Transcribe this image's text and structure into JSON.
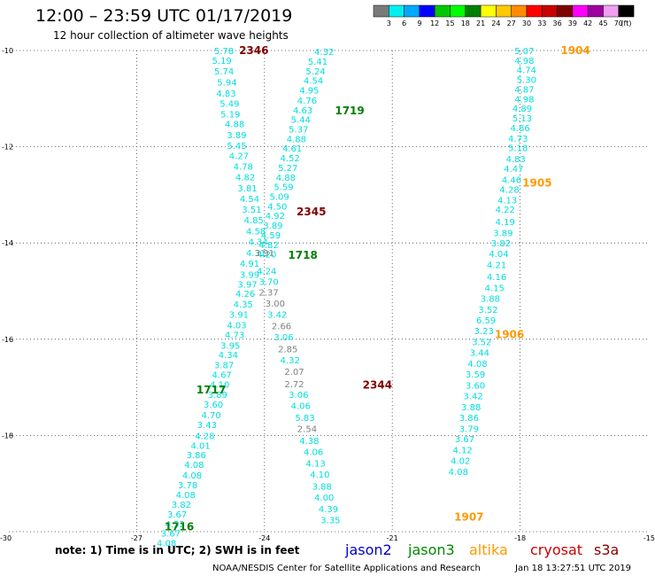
{
  "header": {
    "title": "12:00 – 23:59 UTC 01/17/2019",
    "subtitle": "12 hour collection of altimeter wave heights"
  },
  "colorbar": {
    "colors": [
      "#7a7a7a",
      "#00f0f0",
      "#00a8ff",
      "#0000ff",
      "#00c800",
      "#00ff00",
      "#008000",
      "#ffff00",
      "#ffc800",
      "#ff8c00",
      "#ff0000",
      "#c80000",
      "#800000",
      "#ff00ff",
      "#a000a0",
      "#f0a0f0",
      "#000000"
    ],
    "labels": [
      "3",
      "6",
      "9",
      "12",
      "15",
      "18",
      "21",
      "24",
      "27",
      "30",
      "33",
      "36",
      "39",
      "42",
      "45",
      "70",
      "(ft)"
    ]
  },
  "note": "note:  1) Time is in UTC; 2) SWH is in feet",
  "legend": [
    {
      "label": "jason2",
      "color": "#0000cc"
    },
    {
      "label": "jason3",
      "color": "#008800"
    },
    {
      "label": "altika",
      "color": "#ff9900"
    },
    {
      "label": "cryosat",
      "color": "#cc0000"
    },
    {
      "label": "s3a",
      "color": "#880000"
    }
  ],
  "footer": {
    "center": "NOAA/NESDIS Center for Satellite Applications and Research",
    "timestamp": "Jan 18 13:27:51 UTC 2019"
  },
  "chart_data": {
    "type": "scatter",
    "title": "12:00 – 23:59 UTC 01/17/2019",
    "subtitle": "12 hour collection of altimeter wave heights",
    "xlim": [
      -30,
      -15
    ],
    "ylim": [
      -20,
      -10
    ],
    "x_ticks": [
      "-30",
      "-27",
      "-24",
      "-21",
      "-18",
      "-15"
    ],
    "y_ticks": [
      "-10",
      "-12",
      "-14",
      "-16",
      "-18",
      "-20"
    ],
    "grid": true,
    "colors": {
      "cyan": "#00dede",
      "gray": "#808080",
      "green": "#008000",
      "darkred": "#800000",
      "orange": "#ff9900"
    },
    "time_labels": [
      {
        "text": "2346",
        "x": -24.25,
        "y": -10.0,
        "color": "darkred"
      },
      {
        "text": "1719",
        "x": -22.0,
        "y": -11.25,
        "color": "green"
      },
      {
        "text": "2345",
        "x": -22.9,
        "y": -13.35,
        "color": "darkred"
      },
      {
        "text": "1718",
        "x": -23.1,
        "y": -14.25,
        "color": "green"
      },
      {
        "text": "2344",
        "x": -21.35,
        "y": -16.95,
        "color": "darkred"
      },
      {
        "text": "1717",
        "x": -25.25,
        "y": -17.05,
        "color": "green"
      },
      {
        "text": "1716",
        "x": -26.0,
        "y": -19.9,
        "color": "green"
      },
      {
        "text": "1904",
        "x": -16.7,
        "y": -10.0,
        "color": "orange"
      },
      {
        "text": "1905",
        "x": -17.6,
        "y": -12.75,
        "color": "orange"
      },
      {
        "text": "1906",
        "x": -18.25,
        "y": -15.9,
        "color": "orange"
      },
      {
        "text": "1907",
        "x": -19.2,
        "y": -19.7,
        "color": "orange"
      }
    ],
    "series": [
      {
        "track": "descending-west",
        "color": "cyan",
        "values": [
          {
            "x": -24.95,
            "y": -10.0,
            "swh": "5.78"
          },
          {
            "x": -25.0,
            "y": -10.2,
            "swh": "5.19"
          },
          {
            "x": -24.95,
            "y": -10.42,
            "swh": "5.74"
          },
          {
            "x": -24.88,
            "y": -10.65,
            "swh": "5.94"
          },
          {
            "x": -24.9,
            "y": -10.88,
            "swh": "4.83"
          },
          {
            "x": -24.82,
            "y": -11.1,
            "swh": "5.49"
          },
          {
            "x": -24.8,
            "y": -11.32,
            "swh": "5.19"
          },
          {
            "x": -24.7,
            "y": -11.52,
            "swh": "4.88"
          },
          {
            "x": -24.65,
            "y": -11.75,
            "swh": "3.89"
          },
          {
            "x": -24.65,
            "y": -11.97,
            "swh": "5.45"
          },
          {
            "x": -24.6,
            "y": -12.18,
            "swh": "4.27"
          },
          {
            "x": -24.5,
            "y": -12.4,
            "swh": "4.78"
          },
          {
            "x": -24.45,
            "y": -12.62,
            "swh": "4.82"
          },
          {
            "x": -24.4,
            "y": -12.85,
            "swh": "3.81"
          },
          {
            "x": -24.35,
            "y": -13.08,
            "swh": "4.54"
          },
          {
            "x": -24.3,
            "y": -13.3,
            "swh": "3.51"
          },
          {
            "x": -24.25,
            "y": -13.52,
            "swh": "4.85"
          },
          {
            "x": -24.2,
            "y": -13.75,
            "swh": "4.58"
          },
          {
            "x": -24.15,
            "y": -13.97,
            "swh": "4.34"
          },
          {
            "x": -24.2,
            "y": -14.2,
            "swh": "4.31"
          },
          {
            "x": -24.35,
            "y": -14.42,
            "swh": "4.91"
          },
          {
            "x": -24.35,
            "y": -14.65,
            "swh": "3.99"
          },
          {
            "x": -24.4,
            "y": -14.85,
            "swh": "3.97"
          },
          {
            "x": -24.45,
            "y": -15.05,
            "swh": "4.26"
          },
          {
            "x": -24.5,
            "y": -15.27,
            "swh": "4.35"
          },
          {
            "x": -24.6,
            "y": -15.48,
            "swh": "3.91"
          },
          {
            "x": -24.65,
            "y": -15.7,
            "swh": "4.03"
          },
          {
            "x": -24.7,
            "y": -15.9,
            "swh": "4.73"
          },
          {
            "x": -24.8,
            "y": -16.12,
            "swh": "3.95"
          },
          {
            "x": -24.85,
            "y": -16.32,
            "swh": "4.34"
          },
          {
            "x": -24.95,
            "y": -16.53,
            "swh": "3.87"
          },
          {
            "x": -25.0,
            "y": -16.73,
            "swh": "4.67"
          },
          {
            "x": -25.05,
            "y": -16.93,
            "swh": "4.10"
          },
          {
            "x": -25.1,
            "y": -17.15,
            "swh": "3.89"
          },
          {
            "x": -25.2,
            "y": -17.35,
            "swh": "3.60"
          },
          {
            "x": -25.25,
            "y": -17.57,
            "swh": "4.70"
          },
          {
            "x": -25.35,
            "y": -17.77,
            "swh": "3.43"
          },
          {
            "x": -25.4,
            "y": -18.0,
            "swh": "4.28"
          },
          {
            "x": -25.5,
            "y": -18.2,
            "swh": "4.01"
          },
          {
            "x": -25.6,
            "y": -18.4,
            "swh": "3.86"
          },
          {
            "x": -25.65,
            "y": -18.6,
            "swh": "4.08"
          },
          {
            "x": -25.7,
            "y": -18.82,
            "swh": "4.08"
          },
          {
            "x": -25.8,
            "y": -19.02,
            "swh": "3.78"
          },
          {
            "x": -25.85,
            "y": -19.23,
            "swh": "4.08"
          },
          {
            "x": -25.95,
            "y": -19.43,
            "swh": "3.82"
          },
          {
            "x": -26.05,
            "y": -19.63,
            "swh": "3.67"
          },
          {
            "x": -26.1,
            "y": -19.83,
            "swh": "4.52"
          },
          {
            "x": -26.2,
            "y": -20.03,
            "swh": "3.67"
          },
          {
            "x": -26.3,
            "y": -20.23,
            "swh": "4.08"
          }
        ]
      },
      {
        "track": "ascending-middle",
        "color": "cyan",
        "values": [
          {
            "x": -22.6,
            "y": -10.02,
            "swh": "4.32"
          },
          {
            "x": -22.75,
            "y": -10.22,
            "swh": "5.41"
          },
          {
            "x": -22.8,
            "y": -10.42,
            "swh": "5.24"
          },
          {
            "x": -22.85,
            "y": -10.62,
            "swh": "4.54"
          },
          {
            "x": -22.95,
            "y": -10.82,
            "swh": "4.95"
          },
          {
            "x": -23.0,
            "y": -11.03,
            "swh": "4.76"
          },
          {
            "x": -23.1,
            "y": -11.23,
            "swh": "4.63"
          },
          {
            "x": -23.15,
            "y": -11.43,
            "swh": "5.44"
          },
          {
            "x": -23.2,
            "y": -11.63,
            "swh": "5.37"
          },
          {
            "x": -23.25,
            "y": -11.83,
            "swh": "4.88"
          },
          {
            "x": -23.35,
            "y": -12.03,
            "swh": "4.61"
          },
          {
            "x": -23.4,
            "y": -12.23,
            "swh": "4.52"
          },
          {
            "x": -23.45,
            "y": -12.43,
            "swh": "5.27"
          },
          {
            "x": -23.5,
            "y": -12.63,
            "swh": "4.88"
          },
          {
            "x": -23.55,
            "y": -12.83,
            "swh": "5.59"
          },
          {
            "x": -23.65,
            "y": -13.03,
            "swh": "5.09"
          },
          {
            "x": -23.7,
            "y": -13.23,
            "swh": "4.50"
          },
          {
            "x": -23.75,
            "y": -13.43,
            "swh": "4.92"
          },
          {
            "x": -23.8,
            "y": -13.63,
            "swh": "3.89"
          },
          {
            "x": -23.85,
            "y": -13.83,
            "swh": "4.59"
          },
          {
            "x": -23.9,
            "y": -14.03,
            "swh": "4.82"
          },
          {
            "x": -23.95,
            "y": -14.23,
            "swh": "4.20"
          }
        ]
      },
      {
        "track": "descending-middle",
        "color": "gray",
        "values": [
          {
            "x": -24.0,
            "y": -14.2,
            "swh": "3.91",
            "color": "gray"
          },
          {
            "x": -23.95,
            "y": -14.58,
            "swh": "4.24",
            "color": "cyan"
          },
          {
            "x": -23.9,
            "y": -14.8,
            "swh": "3.70",
            "color": "cyan"
          },
          {
            "x": -23.9,
            "y": -15.02,
            "swh": "2.37",
            "color": "gray"
          },
          {
            "x": -23.75,
            "y": -15.25,
            "swh": "3.00",
            "color": "gray"
          },
          {
            "x": -23.7,
            "y": -15.48,
            "swh": "3.42",
            "color": "cyan"
          },
          {
            "x": -23.6,
            "y": -15.72,
            "swh": "2.66",
            "color": "gray"
          },
          {
            "x": -23.55,
            "y": -15.95,
            "swh": "3.06",
            "color": "cyan"
          },
          {
            "x": -23.45,
            "y": -16.2,
            "swh": "2.85",
            "color": "gray"
          },
          {
            "x": -23.4,
            "y": -16.43,
            "swh": "4.32",
            "color": "cyan"
          },
          {
            "x": -23.3,
            "y": -16.67,
            "swh": "2.07",
            "color": "gray"
          },
          {
            "x": -23.3,
            "y": -16.92,
            "swh": "2.72",
            "color": "gray"
          },
          {
            "x": -23.2,
            "y": -17.15,
            "swh": "3.06",
            "color": "cyan"
          },
          {
            "x": -23.15,
            "y": -17.38,
            "swh": "4.06",
            "color": "cyan"
          },
          {
            "x": -23.05,
            "y": -17.62,
            "swh": "5.83",
            "color": "cyan"
          },
          {
            "x": -23.0,
            "y": -17.85,
            "swh": "2.54",
            "color": "gray"
          },
          {
            "x": -22.95,
            "y": -18.1,
            "swh": "4.38",
            "color": "cyan"
          },
          {
            "x": -22.85,
            "y": -18.33,
            "swh": "4.06",
            "color": "cyan"
          },
          {
            "x": -22.8,
            "y": -18.57,
            "swh": "4.13",
            "color": "cyan"
          },
          {
            "x": -22.7,
            "y": -18.8,
            "swh": "4.10",
            "color": "cyan"
          },
          {
            "x": -22.65,
            "y": -19.05,
            "swh": "3.88",
            "color": "cyan"
          },
          {
            "x": -22.6,
            "y": -19.28,
            "swh": "4.00",
            "color": "cyan"
          },
          {
            "x": -22.5,
            "y": -19.52,
            "swh": "4.39",
            "color": "cyan"
          },
          {
            "x": -22.45,
            "y": -19.75,
            "swh": "3.35",
            "color": "cyan"
          }
        ]
      },
      {
        "track": "ascending-east",
        "color": "cyan",
        "values": [
          {
            "x": -17.9,
            "y": -10.0,
            "swh": "5.07"
          },
          {
            "x": -17.9,
            "y": -10.2,
            "swh": "4.98"
          },
          {
            "x": -17.85,
            "y": -10.4,
            "swh": "4.74"
          },
          {
            "x": -17.85,
            "y": -10.6,
            "swh": "5.30"
          },
          {
            "x": -17.9,
            "y": -10.8,
            "swh": "4.87"
          },
          {
            "x": -17.9,
            "y": -11.0,
            "swh": "4.98"
          },
          {
            "x": -17.95,
            "y": -11.2,
            "swh": "4.89"
          },
          {
            "x": -17.95,
            "y": -11.4,
            "swh": "5.13"
          },
          {
            "x": -18.0,
            "y": -11.6,
            "swh": "4.86"
          },
          {
            "x": -18.05,
            "y": -11.82,
            "swh": "4.73"
          },
          {
            "x": -18.05,
            "y": -12.02,
            "swh": "5.18"
          },
          {
            "x": -18.1,
            "y": -12.25,
            "swh": "4.83"
          },
          {
            "x": -18.15,
            "y": -12.45,
            "swh": "4.47"
          },
          {
            "x": -18.2,
            "y": -12.68,
            "swh": "4.46"
          },
          {
            "x": -18.25,
            "y": -12.88,
            "swh": "4.28"
          },
          {
            "x": -18.3,
            "y": -13.1,
            "swh": "4.13"
          },
          {
            "x": -18.35,
            "y": -13.3,
            "swh": "4.22"
          },
          {
            "x": -18.35,
            "y": -13.55,
            "swh": "4.19"
          },
          {
            "x": -18.4,
            "y": -13.78,
            "swh": "3.89"
          },
          {
            "x": -18.45,
            "y": -14.0,
            "swh": "3.82"
          },
          {
            "x": -18.5,
            "y": -14.22,
            "swh": "4.04"
          },
          {
            "x": -18.55,
            "y": -14.45,
            "swh": "4.21"
          },
          {
            "x": -18.55,
            "y": -14.7,
            "swh": "4.16"
          },
          {
            "x": -18.6,
            "y": -14.93,
            "swh": "4.15"
          },
          {
            "x": -18.7,
            "y": -15.15,
            "swh": "3.88"
          },
          {
            "x": -18.75,
            "y": -15.38,
            "swh": "3.52"
          },
          {
            "x": -18.8,
            "y": -15.6,
            "swh": "6.59"
          },
          {
            "x": -18.85,
            "y": -15.82,
            "swh": "3.23"
          },
          {
            "x": -18.9,
            "y": -16.05,
            "swh": "3.52"
          },
          {
            "x": -18.95,
            "y": -16.27,
            "swh": "3.44"
          },
          {
            "x": -19.0,
            "y": -16.5,
            "swh": "4.08"
          },
          {
            "x": -19.05,
            "y": -16.72,
            "swh": "3.59"
          },
          {
            "x": -19.05,
            "y": -16.95,
            "swh": "3.60"
          },
          {
            "x": -19.1,
            "y": -17.17,
            "swh": "3.42"
          },
          {
            "x": -19.15,
            "y": -17.4,
            "swh": "3.88"
          },
          {
            "x": -19.2,
            "y": -17.62,
            "swh": "3.86"
          },
          {
            "x": -19.2,
            "y": -17.85,
            "swh": "3.79"
          },
          {
            "x": -19.3,
            "y": -18.07,
            "swh": "3.67"
          },
          {
            "x": -19.35,
            "y": -18.3,
            "swh": "4.12"
          },
          {
            "x": -19.4,
            "y": -18.52,
            "swh": "4.02"
          },
          {
            "x": -19.45,
            "y": -18.75,
            "swh": "4.08"
          }
        ]
      }
    ]
  }
}
